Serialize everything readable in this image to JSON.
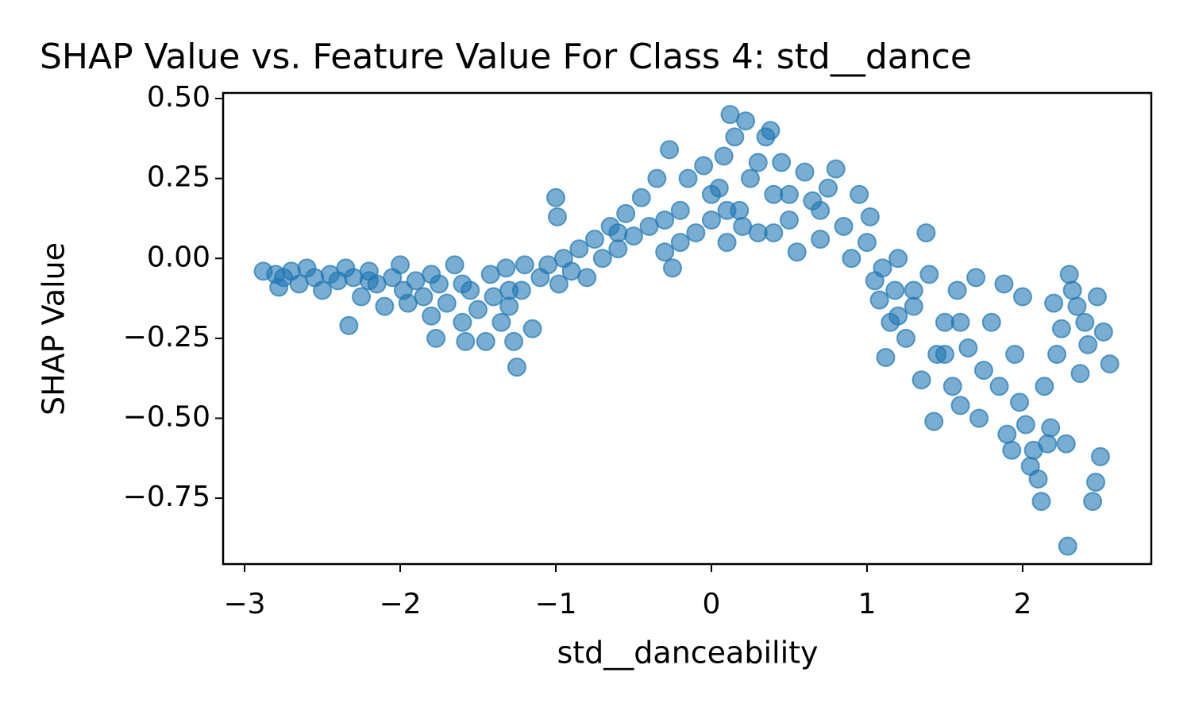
{
  "chart_data": {
    "type": "scatter",
    "title": "SHAP Value vs. Feature Value For Class 4: std__dance",
    "x_label": "std__danceability",
    "y_label": "SHAP Value",
    "color": "#1f77b4",
    "xlim": [
      -3.138,
      2.827
    ],
    "ylim": [
      -0.956,
      0.5175
    ],
    "xticks": [
      {
        "value": -3,
        "label": "−3"
      },
      {
        "value": -2,
        "label": "−2"
      },
      {
        "value": -1,
        "label": "−1"
      },
      0,
      1,
      2
    ],
    "yticks": [
      {
        "value": 0.5,
        "label": "0.50"
      },
      {
        "value": 0.25,
        "label": "0.25"
      },
      {
        "value": 0,
        "label": "0.00"
      },
      {
        "value": -0.25,
        "label": "−0.25"
      },
      {
        "value": -0.5,
        "label": "−0.50"
      },
      {
        "value": -0.75,
        "label": "−0.75"
      }
    ],
    "x": [
      -2.88,
      -2.8,
      -2.78,
      -2.75,
      -2.7,
      -2.65,
      -2.6,
      -2.55,
      -2.5,
      -2.45,
      -2.4,
      -2.35,
      -2.33,
      -2.3,
      -2.25,
      -2.2,
      -2.15,
      -2.1,
      -2.05,
      -2.0,
      -1.98,
      -1.95,
      -1.9,
      -1.85,
      -1.8,
      -1.77,
      -1.75,
      -1.7,
      -1.65,
      -1.6,
      -1.58,
      -1.55,
      -1.5,
      -1.45,
      -1.42,
      -1.4,
      -1.35,
      -1.32,
      -1.3,
      -1.27,
      -1.25,
      -1.22,
      -1.2,
      -1.15,
      -1.1,
      -1.05,
      -1.0,
      -0.99,
      -0.98,
      -0.95,
      -0.9,
      -0.85,
      -0.8,
      -0.75,
      -0.7,
      -0.65,
      -0.6,
      -0.55,
      -0.5,
      -0.45,
      -0.4,
      -0.35,
      -0.3,
      -0.27,
      -0.25,
      -0.2,
      -0.15,
      -0.1,
      -0.05,
      0.0,
      0.05,
      0.08,
      0.1,
      0.12,
      0.15,
      0.18,
      0.22,
      0.25,
      0.3,
      0.35,
      0.38,
      0.4,
      0.45,
      0.5,
      0.55,
      0.6,
      0.65,
      0.7,
      0.75,
      0.8,
      0.85,
      0.9,
      0.95,
      1.0,
      1.02,
      1.05,
      1.08,
      1.1,
      1.12,
      1.15,
      1.18,
      1.2,
      1.25,
      1.3,
      1.35,
      1.38,
      1.4,
      1.43,
      1.45,
      1.5,
      1.55,
      1.58,
      1.6,
      1.65,
      1.7,
      1.72,
      1.75,
      1.8,
      1.85,
      1.88,
      1.9,
      1.93,
      1.95,
      1.98,
      2.0,
      2.02,
      2.05,
      2.07,
      2.1,
      2.12,
      2.14,
      2.16,
      2.18,
      2.2,
      2.22,
      2.25,
      2.28,
      2.29,
      2.3,
      2.32,
      2.35,
      2.37,
      2.4,
      2.42,
      2.45,
      2.47,
      2.48,
      2.5,
      2.52,
      2.56,
      -0.6,
      -0.3,
      0.0,
      0.2,
      0.3,
      0.5,
      0.7,
      -0.2,
      0.1,
      0.4,
      1.3,
      1.5,
      1.6,
      1.2,
      -1.6,
      -1.3,
      -1.8,
      -2.2
    ],
    "y": [
      -0.04,
      -0.05,
      -0.09,
      -0.06,
      -0.04,
      -0.08,
      -0.03,
      -0.06,
      -0.1,
      -0.05,
      -0.07,
      -0.03,
      -0.21,
      -0.06,
      -0.12,
      -0.04,
      -0.08,
      -0.15,
      -0.06,
      -0.02,
      -0.1,
      -0.14,
      -0.07,
      -0.12,
      -0.18,
      -0.25,
      -0.08,
      -0.14,
      -0.02,
      -0.2,
      -0.26,
      -0.1,
      -0.16,
      -0.26,
      -0.05,
      -0.12,
      -0.2,
      -0.03,
      -0.15,
      -0.26,
      -0.34,
      -0.1,
      -0.02,
      -0.22,
      -0.06,
      -0.02,
      0.19,
      0.13,
      -0.08,
      0.0,
      -0.04,
      0.03,
      -0.06,
      0.06,
      0.0,
      0.1,
      0.03,
      0.14,
      0.07,
      0.19,
      0.1,
      0.25,
      0.02,
      0.34,
      -0.03,
      0.15,
      0.25,
      0.08,
      0.29,
      0.12,
      0.22,
      0.32,
      0.05,
      0.45,
      0.38,
      0.15,
      0.43,
      0.25,
      0.08,
      0.38,
      0.4,
      0.2,
      0.3,
      0.12,
      0.02,
      0.27,
      0.18,
      0.06,
      0.22,
      0.28,
      0.1,
      0.0,
      0.2,
      0.05,
      0.13,
      -0.07,
      -0.13,
      -0.03,
      -0.31,
      -0.2,
      -0.1,
      0.0,
      -0.25,
      -0.15,
      -0.38,
      0.08,
      -0.05,
      -0.51,
      -0.3,
      -0.2,
      -0.4,
      -0.1,
      -0.46,
      -0.28,
      -0.06,
      -0.5,
      -0.35,
      -0.2,
      -0.4,
      -0.08,
      -0.55,
      -0.6,
      -0.3,
      -0.45,
      -0.12,
      -0.52,
      -0.65,
      -0.6,
      -0.69,
      -0.76,
      -0.4,
      -0.58,
      -0.53,
      -0.14,
      -0.3,
      -0.22,
      -0.58,
      -0.9,
      -0.05,
      -0.1,
      -0.15,
      -0.36,
      -0.2,
      -0.27,
      -0.76,
      -0.7,
      -0.12,
      -0.62,
      -0.23,
      -0.33,
      0.08,
      0.12,
      0.2,
      0.1,
      0.3,
      0.2,
      0.15,
      0.05,
      0.15,
      0.08,
      -0.1,
      -0.3,
      -0.2,
      -0.18,
      -0.08,
      -0.1,
      -0.05,
      -0.07
    ]
  }
}
